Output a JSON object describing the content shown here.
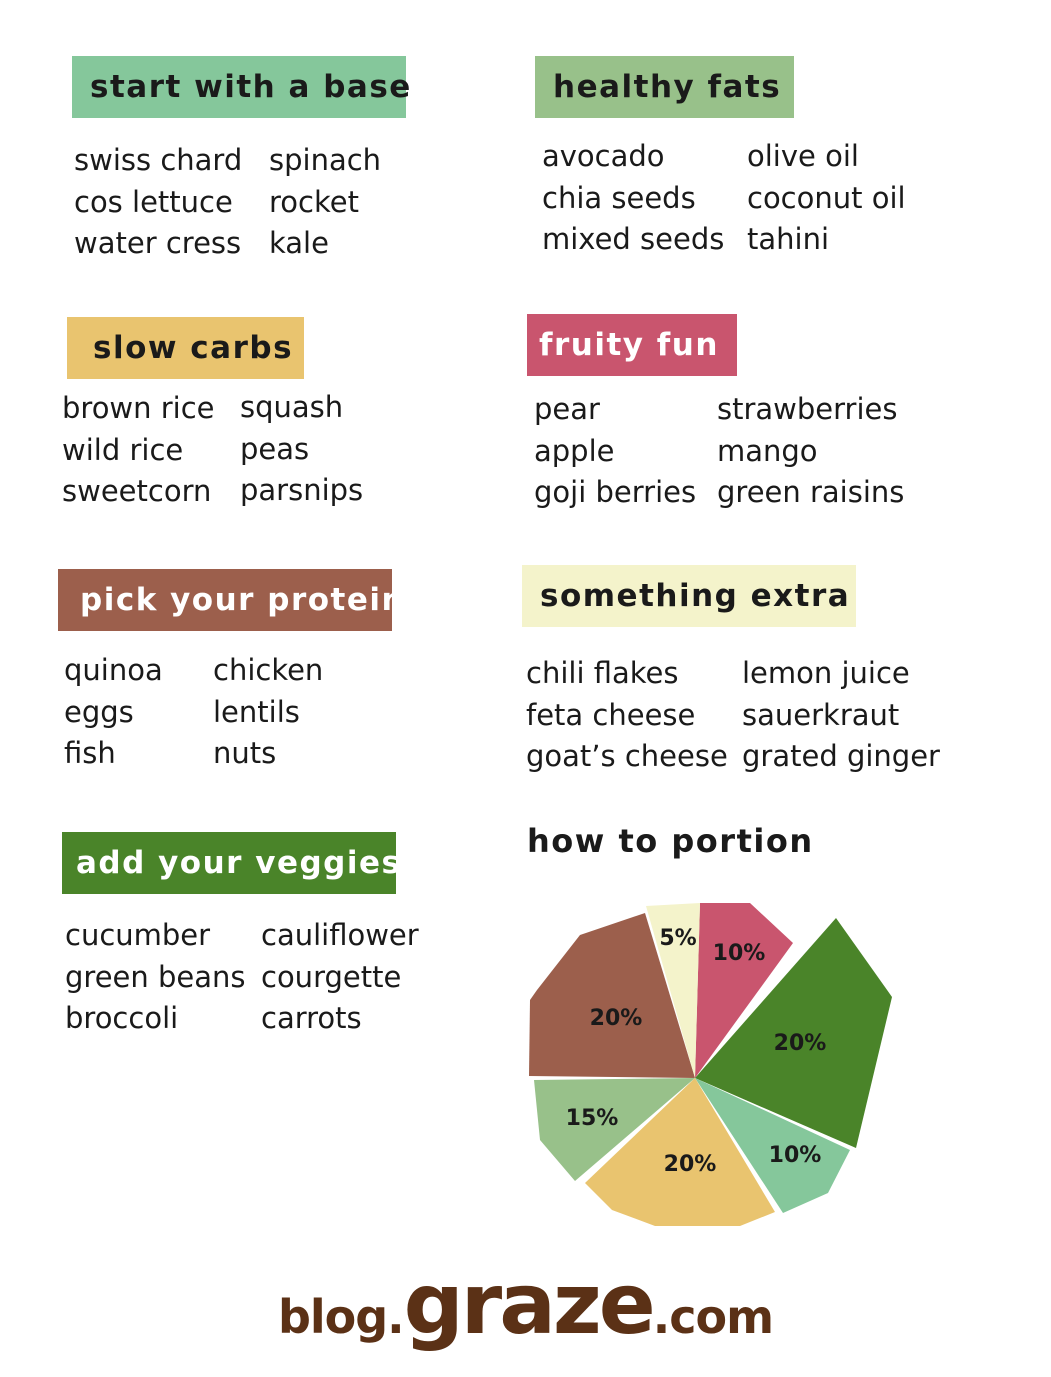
{
  "sections": {
    "base": {
      "title": "start with a base",
      "color": "#85c79b",
      "text_color": "#1a1a1a",
      "col1": [
        "swiss chard",
        "cos lettuce",
        "water cress"
      ],
      "col2": [
        "spinach",
        "rocket",
        "kale"
      ]
    },
    "fats": {
      "title": "healthy fats",
      "color": "#98c18a",
      "text_color": "#1a1a1a",
      "col1": [
        "avocado",
        "chia seeds",
        "mixed seeds"
      ],
      "col2": [
        "olive oil",
        "coconut oil",
        "tahini"
      ]
    },
    "carbs": {
      "title": "slow carbs",
      "color": "#e9c46f",
      "text_color": "#1a1a1a",
      "col1": [
        "brown rice",
        "wild rice",
        "sweetcorn"
      ],
      "col2": [
        "squash",
        "peas",
        "parsnips"
      ]
    },
    "fruit": {
      "title": "fruity fun",
      "color": "#c9556e",
      "text_color": "#ffffff",
      "col1": [
        "pear",
        "apple",
        "goji berries"
      ],
      "col2": [
        "strawberries",
        "mango",
        "green raisins"
      ]
    },
    "protein": {
      "title": "pick your protein",
      "color": "#9c5f4c",
      "text_color": "#ffffff",
      "col1": [
        "quinoa",
        "eggs",
        "fish"
      ],
      "col2": [
        "chicken",
        "lentils",
        "nuts"
      ]
    },
    "extra": {
      "title": "something extra",
      "color": "#f4f3cb",
      "text_color": "#1a1a1a",
      "col1": [
        "chili flakes",
        "feta cheese",
        "goat’s cheese"
      ],
      "col2": [
        "lemon juice",
        "sauerkraut",
        "grated ginger"
      ]
    },
    "veggies": {
      "title": "add your veggies",
      "color": "#4a8429",
      "text_color": "#ffffff",
      "col1": [
        "cucumber",
        "green beans",
        "broccoli"
      ],
      "col2": [
        "cauliflower",
        "courgette",
        "carrots"
      ]
    }
  },
  "portion_title": "how to portion",
  "chart_data": {
    "type": "pie",
    "title": "",
    "slices": [
      {
        "label": "10%",
        "value": 10,
        "color": "#c9556e"
      },
      {
        "label": "20%",
        "value": 20,
        "color": "#4a8429"
      },
      {
        "label": "10%",
        "value": 10,
        "color": "#85c79b"
      },
      {
        "label": "20%",
        "value": 20,
        "color": "#e9c46f"
      },
      {
        "label": "15%",
        "value": 15,
        "color": "#98c18a"
      },
      {
        "label": "20%",
        "value": 20,
        "color": "#9c5f4c"
      },
      {
        "label": "5%",
        "value": 5,
        "color": "#f4f3cb"
      }
    ]
  },
  "footer": {
    "prefix": "blog.",
    "brand": "graze",
    "suffix": ".com"
  }
}
